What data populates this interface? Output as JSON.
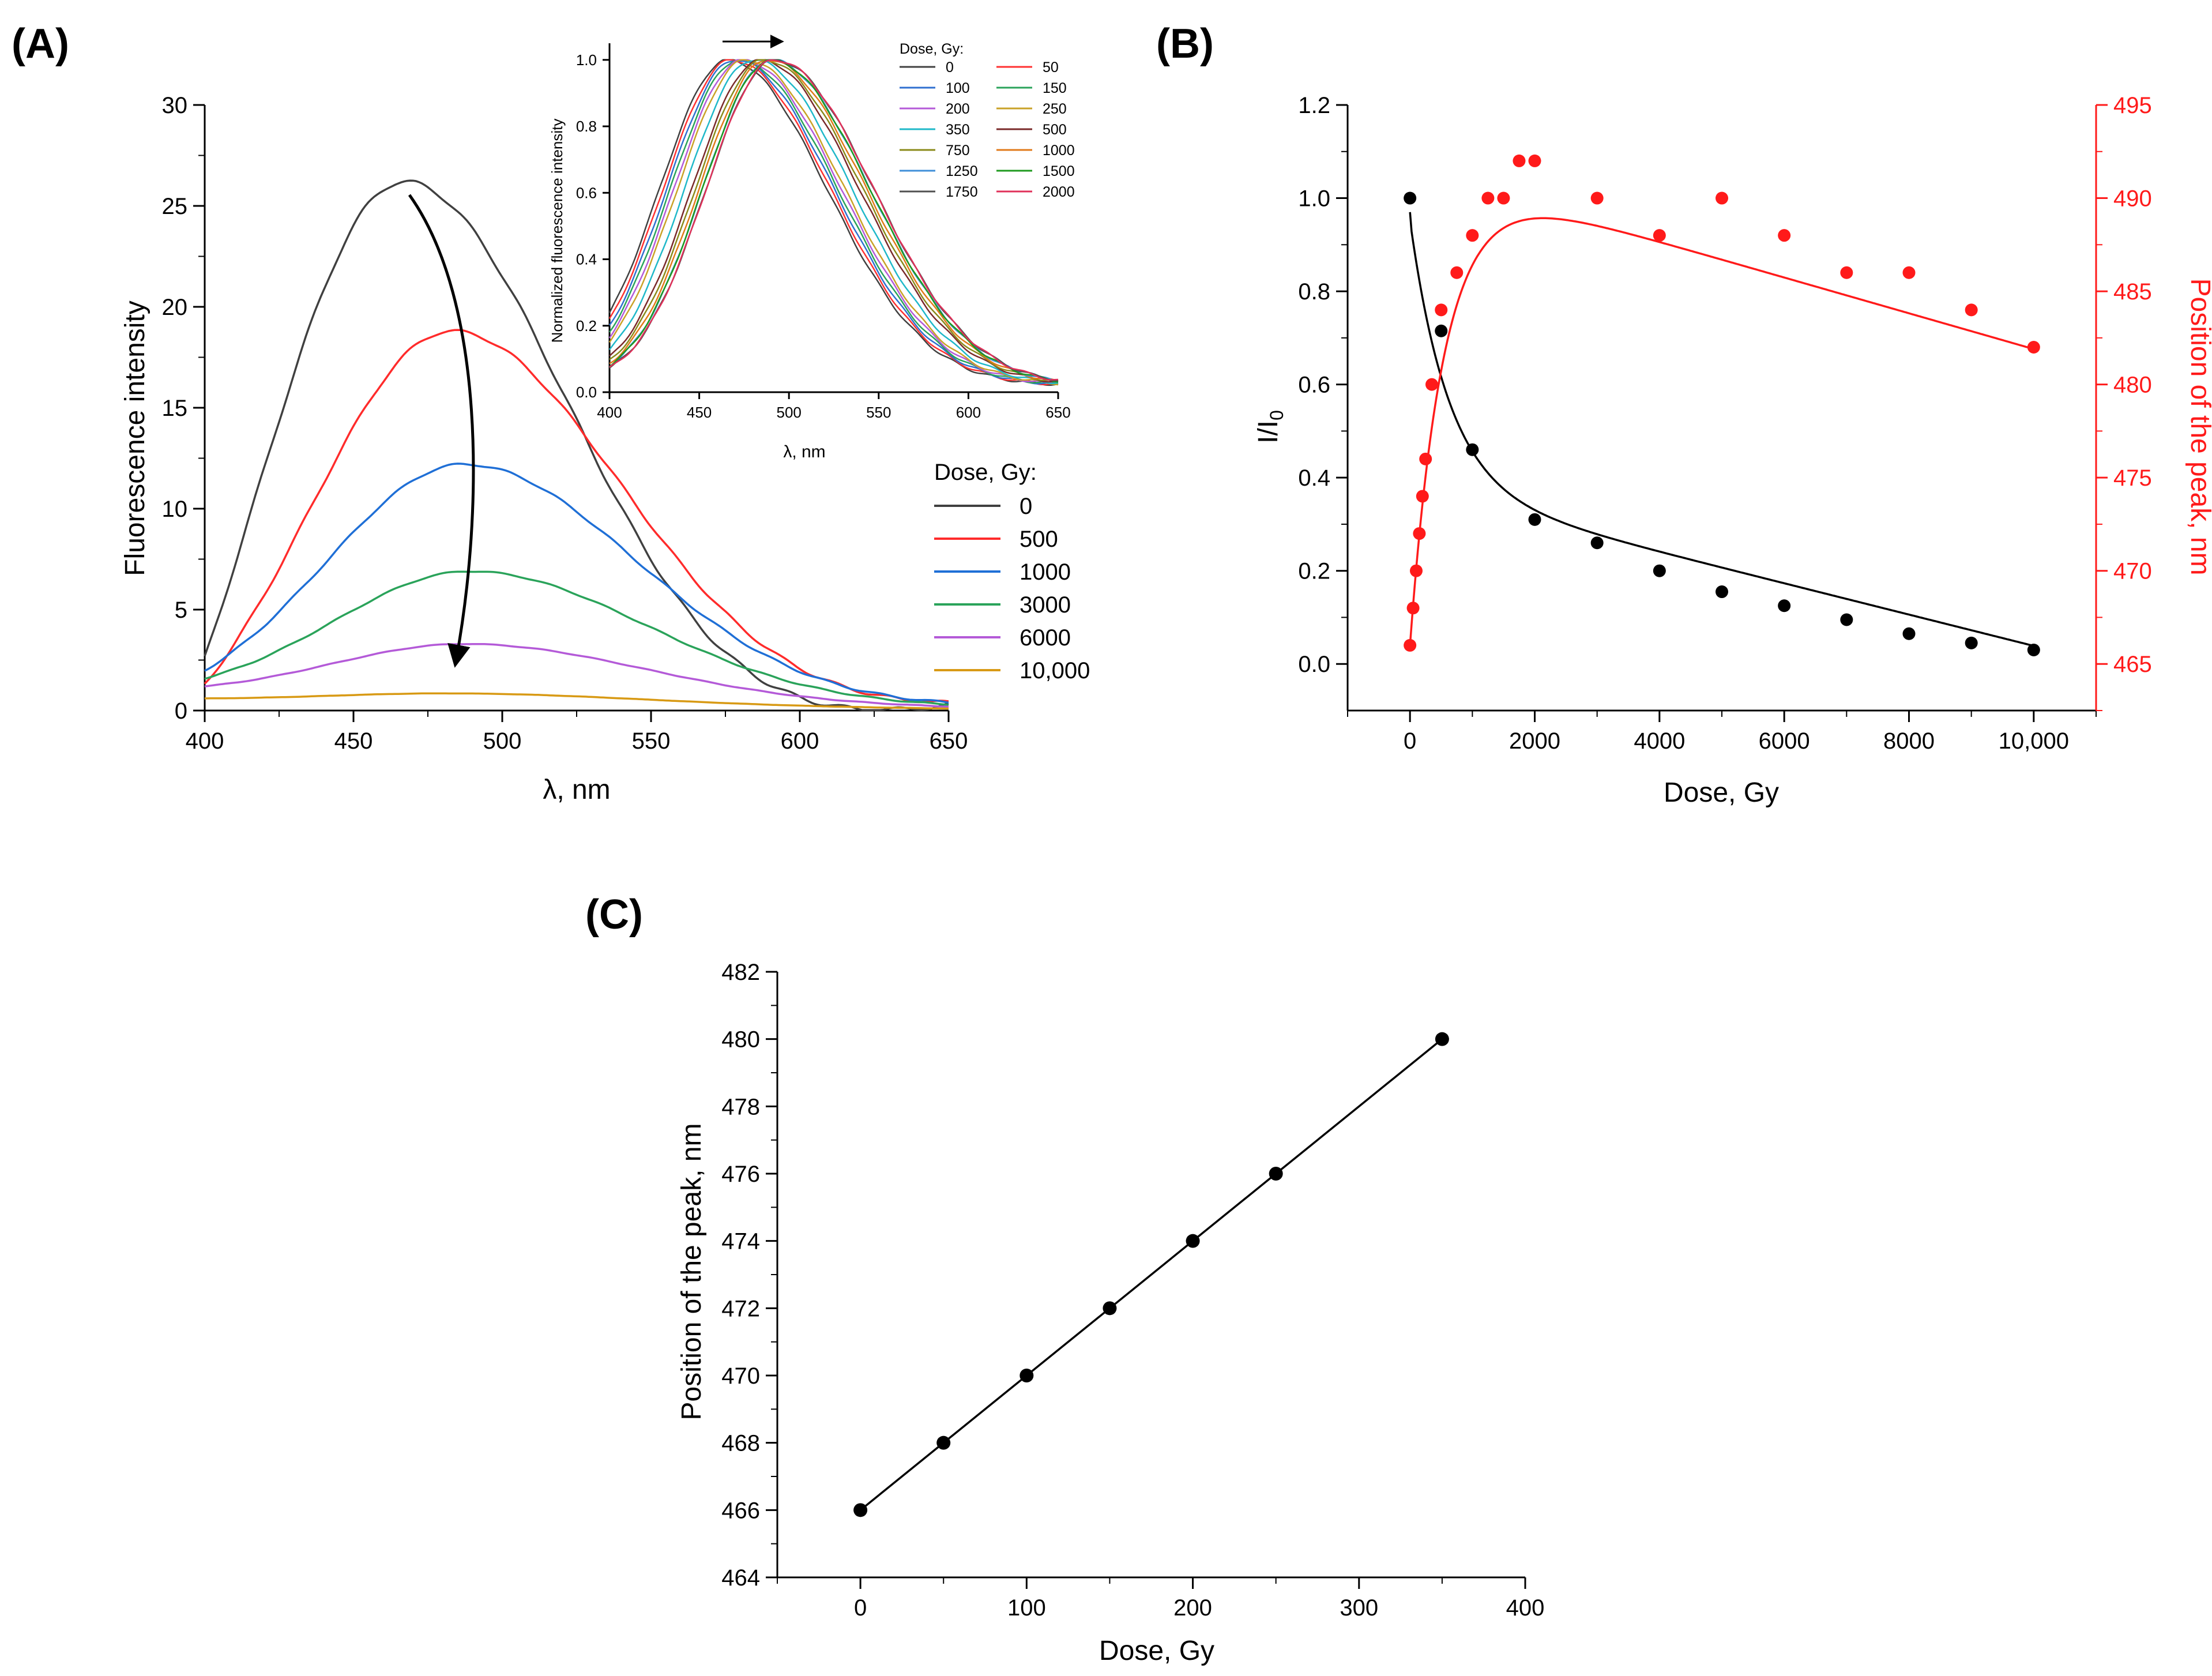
{
  "chart_data": [
    {
      "panel": "(A)",
      "type": "line",
      "title": "",
      "xlabel": "λ, nm",
      "ylabel": "Fluorescence intensity",
      "xlim": [
        400,
        650
      ],
      "ylim": [
        0,
        30
      ],
      "xticks": [
        "400",
        "450",
        "500",
        "550",
        "600",
        "650"
      ],
      "yticks": [
        "0",
        "5",
        "10",
        "15",
        "20",
        "25",
        "30"
      ],
      "legend_title": "Dose, Gy:",
      "legend_position": "right",
      "series": [
        {
          "name": "0",
          "color": "#404040",
          "peak_x": 467,
          "peak_y": 26.2,
          "start_y": 2.6,
          "end_y": 0.25
        },
        {
          "name": "500",
          "color": "#ff2b2b",
          "peak_x": 483,
          "peak_y": 18.8,
          "start_y": 1.3,
          "end_y": 0.4
        },
        {
          "name": "1000",
          "color": "#1f6fd6",
          "peak_x": 487,
          "peak_y": 12.2,
          "start_y": 2.0,
          "end_y": 0.4
        },
        {
          "name": "3000",
          "color": "#2aa35a",
          "peak_x": 489,
          "peak_y": 6.9,
          "start_y": 1.6,
          "end_y": 0.3
        },
        {
          "name": "6000",
          "color": "#b45ad8",
          "peak_x": 487,
          "peak_y": 3.3,
          "start_y": 1.2,
          "end_y": 0.2
        },
        {
          "name": "10,000",
          "color": "#d89a15",
          "peak_x": 480,
          "peak_y": 0.85,
          "start_y": 0.6,
          "end_y": 0.1
        }
      ],
      "annotation": "arrow: decreasing intensity with dose",
      "inset": {
        "type": "line",
        "xlabel": "λ, nm",
        "ylabel": "Normalized fluorescence intensity",
        "xlim": [
          400,
          650
        ],
        "ylim": [
          0,
          1.05
        ],
        "xticks": [
          "400",
          "450",
          "500",
          "550",
          "600",
          "650"
        ],
        "yticks": [
          "0.0",
          "0.2",
          "0.4",
          "0.6",
          "0.8",
          "1.0"
        ],
        "legend_title": "Dose, Gy:",
        "annotation": "arrow: peak shift to longer wavelength",
        "series": [
          {
            "name": "0",
            "color": "#404040",
            "peak_x": 466
          },
          {
            "name": "50",
            "color": "#ff3030",
            "peak_x": 468
          },
          {
            "name": "100",
            "color": "#2f6fd0",
            "peak_x": 470
          },
          {
            "name": "150",
            "color": "#2aa35a",
            "peak_x": 472
          },
          {
            "name": "200",
            "color": "#b45ad8",
            "peak_x": 474
          },
          {
            "name": "250",
            "color": "#c9a227",
            "peak_x": 476
          },
          {
            "name": "350",
            "color": "#1fb8c9",
            "peak_x": 480
          },
          {
            "name": "500",
            "color": "#7a2a2a",
            "peak_x": 484
          },
          {
            "name": "750",
            "color": "#8a8a1a",
            "peak_x": 486
          },
          {
            "name": "1000",
            "color": "#e07a1a",
            "peak_x": 488
          },
          {
            "name": "1250",
            "color": "#3f8fd8",
            "peak_x": 490
          },
          {
            "name": "1500",
            "color": "#1e9a1e",
            "peak_x": 490
          },
          {
            "name": "1750",
            "color": "#505050",
            "peak_x": 492
          },
          {
            "name": "2000",
            "color": "#e0305a",
            "peak_x": 492
          }
        ]
      }
    },
    {
      "panel": "(B)",
      "type": "scatter",
      "title": "",
      "xlabel": "Dose, Gy",
      "ylabel": "I/I0",
      "ylabel_right": "Position of the peak, nm",
      "xlim": [
        -1000,
        11000
      ],
      "ylim": [
        -0.1,
        1.2
      ],
      "ylim_right": [
        462.5,
        495
      ],
      "xticks": [
        "0",
        "2000",
        "4000",
        "6000",
        "8000",
        "10,000"
      ],
      "yticks": [
        "0.0",
        "0.2",
        "0.4",
        "0.6",
        "0.8",
        "1.0",
        "1.2"
      ],
      "yticks_right": [
        "465",
        "470",
        "475",
        "480",
        "485",
        "490",
        "495"
      ],
      "series": [
        {
          "name": "I/I0",
          "axis": "left",
          "color": "#000000",
          "x": [
            0,
            500,
            1000,
            2000,
            3000,
            4000,
            5000,
            6000,
            7000,
            8000,
            9000,
            10000
          ],
          "y": [
            1.0,
            0.715,
            0.46,
            0.31,
            0.26,
            0.2,
            0.155,
            0.125,
            0.095,
            0.065,
            0.045,
            0.03
          ]
        },
        {
          "name": "Position of the peak, nm",
          "axis": "right",
          "color": "#ff1a1a",
          "x": [
            0,
            50,
            100,
            150,
            200,
            250,
            350,
            500,
            750,
            1000,
            1250,
            1500,
            1750,
            2000,
            3000,
            4000,
            5000,
            6000,
            7000,
            8000,
            9000,
            10000
          ],
          "y": [
            466,
            468,
            470,
            472,
            474,
            476,
            480,
            484,
            486,
            488,
            490,
            490,
            492,
            492,
            490,
            488,
            490,
            488,
            486,
            486,
            484,
            482
          ]
        }
      ]
    },
    {
      "panel": "(C)",
      "type": "scatter",
      "title": "",
      "xlabel": "Dose, Gy",
      "ylabel": "Position of the peak, nm",
      "xlim": [
        -50,
        400
      ],
      "ylim": [
        464,
        482
      ],
      "xticks": [
        "0",
        "100",
        "200",
        "300",
        "400"
      ],
      "yticks": [
        "464",
        "466",
        "468",
        "470",
        "472",
        "474",
        "476",
        "478",
        "480",
        "482"
      ],
      "series": [
        {
          "name": "Position of the peak",
          "color": "#000000",
          "x": [
            0,
            50,
            100,
            150,
            200,
            250,
            350
          ],
          "y": [
            466,
            468,
            470,
            472,
            474,
            476,
            480
          ]
        }
      ]
    }
  ]
}
